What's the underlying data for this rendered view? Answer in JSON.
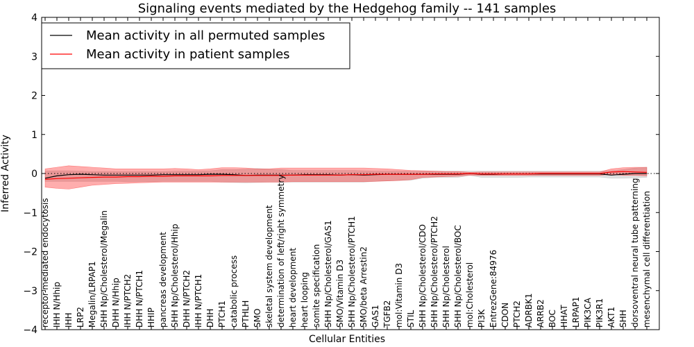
{
  "chart_data": {
    "type": "line",
    "title": "Signaling events mediated by the Hedgehog family -- 141 samples",
    "xlabel": "Cellular Entities",
    "ylabel": "Inferred Activity",
    "ylim": [
      -4,
      4
    ],
    "yticks": [
      -4,
      -3,
      -2,
      -1,
      0,
      1,
      2,
      3,
      4
    ],
    "ytick_labels": [
      "−4",
      "−3",
      "−2",
      "−1",
      "0",
      "1",
      "2",
      "3",
      "4"
    ],
    "legend_position": "top-left",
    "categories": [
      "receptor-mediated endocytosis",
      "IHH N/Hhip",
      "IHH",
      "LRP2",
      "Megalin/LRPAP1",
      "SHH Np/Cholesterol/Megalin",
      "DHH N/Hhip",
      "IHH N/PTCH2",
      "DHH N/PTCH1",
      "HHIP",
      "pancreas development",
      "SHH Np/Cholesterol/Hhip",
      "DHH N/PTCH2",
      "IHH N/PTCH1",
      "DHH",
      "PTCH1",
      "catabolic process",
      "PTHLH",
      "SMO",
      "skeletal system development",
      "determination of left/right symmetry",
      "heart development",
      "heart looping",
      "somite specification",
      "SHH Np/Cholesterol/GAS1",
      "SMO/Vitamin D3",
      "SHH Np/Cholesterol/PTCH1",
      "SMO/beta Arrestin2",
      "GAS1",
      "TGFB2",
      "mol:Vitamin D3",
      "STIL",
      "SHH Np/Cholesterol/CDO",
      "SHH Np/Cholesterol/PTCH2",
      "SHH Np/Cholesterol",
      "SHH Np/Cholesterol/BOC",
      "mol:Cholesterol",
      "PI3K",
      "EntrezGene:84976",
      "CDON",
      "PTCH2",
      "ADRBK1",
      "ARRB2",
      "BOC",
      "HHAT",
      "LRPAP1",
      "PIK3CA",
      "PIK3R1",
      "AKT1",
      "SHH",
      "dorsoventral neural tube patterning",
      "mesenchymal cell differentiation"
    ],
    "series": [
      {
        "name": "Mean activity in all permuted samples",
        "color": "#000000",
        "values": [
          -0.12,
          -0.06,
          -0.03,
          -0.02,
          -0.03,
          -0.04,
          -0.04,
          -0.04,
          -0.04,
          -0.04,
          -0.03,
          -0.03,
          -0.03,
          -0.03,
          -0.02,
          -0.02,
          -0.03,
          -0.05,
          -0.04,
          -0.04,
          -0.04,
          -0.04,
          -0.03,
          -0.03,
          -0.03,
          -0.04,
          -0.03,
          -0.04,
          -0.03,
          -0.02,
          -0.02,
          -0.02,
          -0.02,
          -0.02,
          -0.02,
          -0.02,
          0.0,
          -0.02,
          -0.02,
          -0.01,
          -0.01,
          -0.01,
          -0.01,
          -0.01,
          -0.01,
          -0.01,
          -0.01,
          -0.01,
          -0.04,
          -0.02,
          0.0,
          0.0
        ],
        "band": {
          "upper": [
            0.06,
            0.07,
            0.07,
            0.06,
            0.05,
            0.05,
            0.05,
            0.05,
            0.05,
            0.05,
            0.05,
            0.06,
            0.06,
            0.06,
            0.07,
            0.1,
            0.1,
            0.11,
            0.13,
            0.11,
            0.1,
            0.08,
            0.08,
            0.08,
            0.08,
            0.08,
            0.08,
            0.07,
            0.06,
            0.06,
            0.06,
            0.06,
            0.06,
            0.06,
            0.06,
            0.06,
            0.06,
            0.06,
            0.06,
            0.06,
            0.06,
            0.06,
            0.06,
            0.06,
            0.06,
            0.06,
            0.06,
            0.06,
            0.07,
            0.1,
            0.14,
            0.16
          ],
          "lower": [
            -0.2,
            -0.2,
            -0.2,
            -0.2,
            -0.2,
            -0.2,
            -0.2,
            -0.21,
            -0.21,
            -0.21,
            -0.2,
            -0.2,
            -0.2,
            -0.2,
            -0.2,
            -0.22,
            -0.23,
            -0.24,
            -0.23,
            -0.22,
            -0.22,
            -0.22,
            -0.22,
            -0.22,
            -0.22,
            -0.22,
            -0.22,
            -0.22,
            -0.2,
            -0.19,
            -0.18,
            -0.17,
            -0.12,
            -0.1,
            -0.1,
            -0.1,
            -0.05,
            -0.1,
            -0.1,
            -0.1,
            -0.1,
            -0.09,
            -0.09,
            -0.09,
            -0.09,
            -0.09,
            -0.09,
            -0.09,
            -0.12,
            -0.12,
            -0.11,
            -0.1
          ]
        }
      },
      {
        "name": "Mean activity in patient samples",
        "color": "#ff0000",
        "values": [
          -0.15,
          -0.13,
          -0.12,
          -0.11,
          -0.1,
          -0.09,
          -0.09,
          -0.08,
          -0.08,
          -0.07,
          -0.07,
          -0.06,
          -0.06,
          -0.06,
          -0.06,
          -0.05,
          -0.05,
          -0.05,
          -0.05,
          -0.05,
          -0.05,
          -0.04,
          -0.04,
          -0.04,
          -0.04,
          -0.04,
          -0.03,
          -0.03,
          -0.02,
          -0.02,
          -0.02,
          -0.02,
          -0.02,
          -0.01,
          -0.01,
          -0.01,
          0.0,
          -0.01,
          -0.01,
          -0.01,
          -0.01,
          -0.01,
          0.0,
          0.0,
          0.0,
          0.0,
          0.0,
          0.0,
          0.04,
          0.05,
          0.04,
          0.03
        ],
        "band": {
          "upper": [
            0.12,
            0.16,
            0.2,
            0.18,
            0.16,
            0.14,
            0.12,
            0.12,
            0.12,
            0.12,
            0.12,
            0.13,
            0.12,
            0.1,
            0.12,
            0.15,
            0.15,
            0.14,
            0.12,
            0.12,
            0.14,
            0.14,
            0.14,
            0.14,
            0.14,
            0.14,
            0.14,
            0.14,
            0.13,
            0.12,
            0.1,
            0.08,
            0.07,
            0.06,
            0.05,
            0.05,
            0.03,
            0.04,
            0.04,
            0.04,
            0.04,
            0.04,
            0.04,
            0.04,
            0.04,
            0.04,
            0.04,
            0.04,
            0.12,
            0.15,
            0.16,
            0.16
          ],
          "lower": [
            -0.35,
            -0.38,
            -0.4,
            -0.35,
            -0.3,
            -0.28,
            -0.26,
            -0.25,
            -0.24,
            -0.23,
            -0.22,
            -0.22,
            -0.22,
            -0.22,
            -0.22,
            -0.22,
            -0.22,
            -0.22,
            -0.22,
            -0.22,
            -0.22,
            -0.21,
            -0.21,
            -0.21,
            -0.21,
            -0.21,
            -0.21,
            -0.21,
            -0.2,
            -0.19,
            -0.18,
            -0.16,
            -0.1,
            -0.09,
            -0.08,
            -0.07,
            -0.04,
            -0.05,
            -0.05,
            -0.05,
            -0.05,
            -0.05,
            -0.05,
            -0.05,
            -0.05,
            -0.05,
            -0.05,
            -0.05,
            -0.02,
            -0.05,
            -0.05,
            -0.06
          ]
        }
      }
    ],
    "baseline": 0
  }
}
